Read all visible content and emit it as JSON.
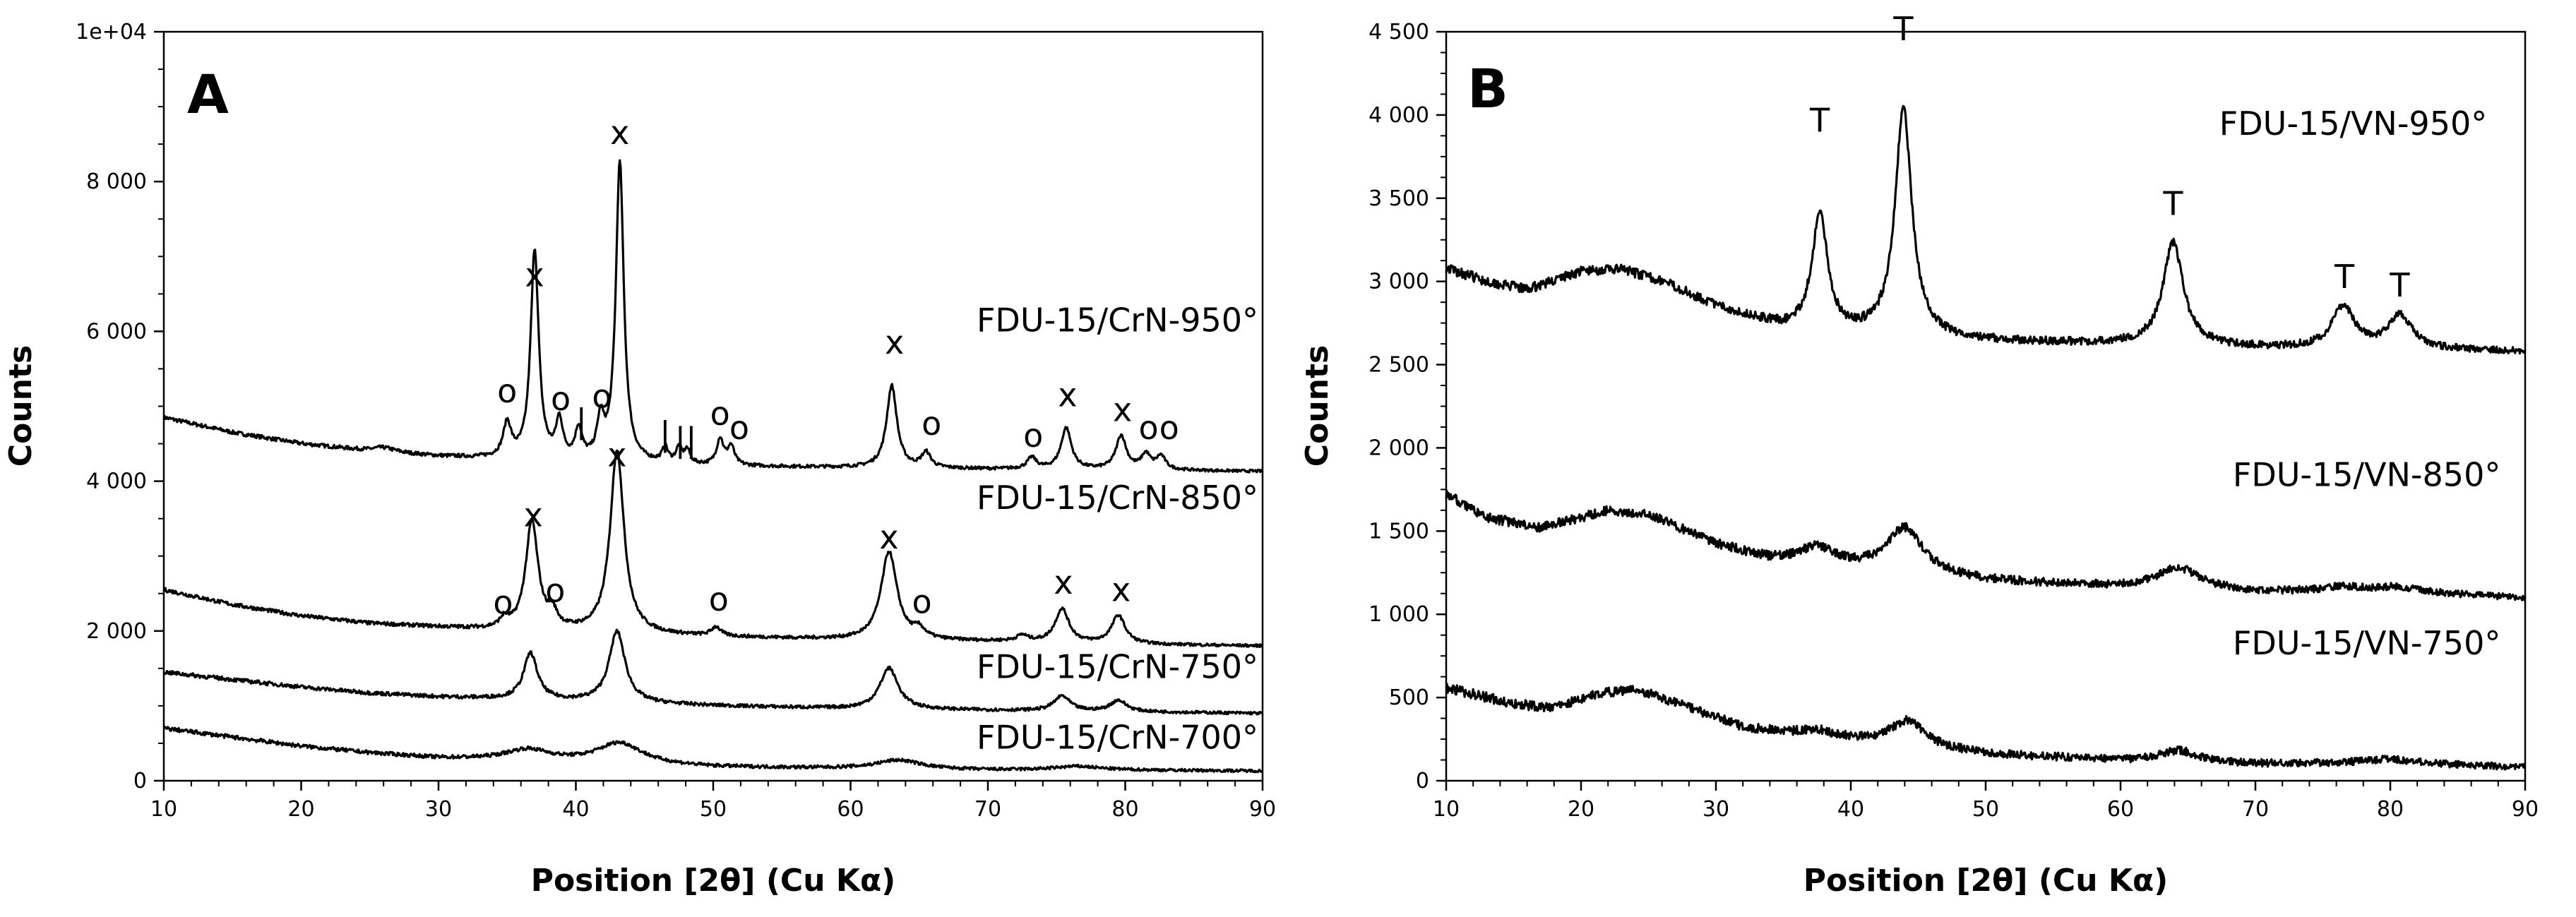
{
  "chart_data": [
    {
      "panel": "A",
      "type": "line",
      "title": "",
      "xlabel": "Position [2θ] (Cu Kα)",
      "ylabel": "Counts",
      "xlim": [
        10,
        90
      ],
      "ylim": [
        0,
        10000
      ],
      "x_ticks": [
        10,
        20,
        30,
        40,
        50,
        60,
        70,
        80,
        90
      ],
      "x_tick_labels": [
        "10",
        "20",
        "30",
        "40",
        "50",
        "60",
        "70",
        "80",
        "90"
      ],
      "y_ticks": [
        0,
        2000,
        4000,
        6000,
        8000,
        10000
      ],
      "y_tick_labels": [
        "0",
        "2 000",
        "4 000",
        "6 000",
        "8 000",
        "1e+04"
      ],
      "series": [
        {
          "name": "FDU-15/CrN-950°",
          "baseline": [
            [
              10,
              4850
            ],
            [
              15,
              4650
            ],
            [
              20,
              4500
            ],
            [
              25,
              4400
            ],
            [
              30,
              4330
            ],
            [
              40,
              4250
            ],
            [
              50,
              4200
            ],
            [
              60,
              4180
            ],
            [
              70,
              4160
            ],
            [
              80,
              4150
            ],
            [
              90,
              4130
            ]
          ],
          "peaks": [
            [
              26,
              60,
              1.0
            ],
            [
              35.0,
              450,
              0.35
            ],
            [
              37.0,
              2800,
              0.35
            ],
            [
              38.8,
              500,
              0.3
            ],
            [
              40.2,
              400,
              0.3
            ],
            [
              41.8,
              500,
              0.3
            ],
            [
              43.2,
              4000,
              0.35
            ],
            [
              46.5,
              200,
              0.25
            ],
            [
              47.5,
              200,
              0.25
            ],
            [
              48.1,
              180,
              0.25
            ],
            [
              50.5,
              350,
              0.3
            ],
            [
              51.3,
              250,
              0.3
            ],
            [
              63.0,
              1100,
              0.45
            ],
            [
              65.5,
              200,
              0.4
            ],
            [
              73.2,
              150,
              0.4
            ],
            [
              75.7,
              550,
              0.45
            ],
            [
              79.7,
              450,
              0.45
            ],
            [
              81.5,
              200,
              0.4
            ],
            [
              82.6,
              180,
              0.4
            ]
          ],
          "label_value_at_x": [
            [
              70,
              6150
            ]
          ]
        },
        {
          "name": "FDU-15/CrN-850°",
          "baseline": [
            [
              10,
              2550
            ],
            [
              15,
              2350
            ],
            [
              20,
              2200
            ],
            [
              25,
              2100
            ],
            [
              30,
              2050
            ],
            [
              35,
              2000
            ],
            [
              40,
              1980
            ],
            [
              50,
              1920
            ],
            [
              60,
              1880
            ],
            [
              70,
              1860
            ],
            [
              80,
              1820
            ],
            [
              90,
              1800
            ]
          ],
          "peaks": [
            [
              34.8,
              120,
              0.4
            ],
            [
              36.8,
              1450,
              0.55
            ],
            [
              38.3,
              200,
              0.4
            ],
            [
              43.0,
              2450,
              0.6
            ],
            [
              50.2,
              120,
              0.4
            ],
            [
              62.8,
              1180,
              0.7
            ],
            [
              65.0,
              120,
              0.5
            ],
            [
              72.5,
              80,
              0.5
            ],
            [
              75.4,
              450,
              0.6
            ],
            [
              79.5,
              380,
              0.6
            ]
          ]
        },
        {
          "name": "FDU-15/CrN-750°",
          "baseline": [
            [
              10,
              1450
            ],
            [
              15,
              1350
            ],
            [
              20,
              1250
            ],
            [
              25,
              1170
            ],
            [
              30,
              1120
            ],
            [
              40,
              1060
            ],
            [
              50,
              1000
            ],
            [
              60,
              960
            ],
            [
              70,
              940
            ],
            [
              80,
              920
            ],
            [
              90,
              900
            ]
          ],
          "peaks": [
            [
              36.7,
              620,
              0.6
            ],
            [
              43.0,
              950,
              0.7
            ],
            [
              62.8,
              550,
              0.8
            ],
            [
              75.4,
              200,
              0.7
            ],
            [
              79.5,
              150,
              0.7
            ]
          ]
        },
        {
          "name": "FDU-15/CrN-700°",
          "baseline": [
            [
              10,
              700
            ],
            [
              15,
              580
            ],
            [
              20,
              460
            ],
            [
              25,
              370
            ],
            [
              30,
              300
            ],
            [
              40,
              240
            ],
            [
              50,
              180
            ],
            [
              60,
              160
            ],
            [
              70,
              140
            ],
            [
              80,
              140
            ],
            [
              90,
              130
            ]
          ],
          "peaks": [
            [
              36.5,
              150,
              2.0
            ],
            [
              43.2,
              280,
              2.0
            ],
            [
              63.5,
              120,
              2.0
            ],
            [
              76.5,
              50,
              2.0
            ]
          ]
        }
      ],
      "annotations": [
        {
          "text": "x",
          "x": 37.0,
          "y": 6600
        },
        {
          "text": "x",
          "x": 43.2,
          "y": 8500
        },
        {
          "text": "x",
          "x": 63.2,
          "y": 5700
        },
        {
          "text": "x",
          "x": 75.8,
          "y": 5000
        },
        {
          "text": "x",
          "x": 79.8,
          "y": 4800
        },
        {
          "text": "o",
          "x": 35.0,
          "y": 5050
        },
        {
          "text": "o",
          "x": 38.9,
          "y": 4950
        },
        {
          "text": "o",
          "x": 41.9,
          "y": 4980
        },
        {
          "text": "|",
          "x": 40.4,
          "y": 4650
        },
        {
          "text": "|",
          "x": 46.5,
          "y": 4480
        },
        {
          "text": "||",
          "x": 48.0,
          "y": 4400
        },
        {
          "text": "o",
          "x": 50.5,
          "y": 4750
        },
        {
          "text": "o",
          "x": 51.9,
          "y": 4560
        },
        {
          "text": "o",
          "x": 65.9,
          "y": 4620
        },
        {
          "text": "o",
          "x": 73.3,
          "y": 4460
        },
        {
          "text": "o",
          "x": 81.7,
          "y": 4560
        },
        {
          "text": "o",
          "x": 83.2,
          "y": 4560
        },
        {
          "text": "x",
          "x": 43.0,
          "y": 4200
        },
        {
          "text": "x",
          "x": 36.9,
          "y": 3400
        },
        {
          "text": "x",
          "x": 62.8,
          "y": 3100
        },
        {
          "text": "x",
          "x": 75.5,
          "y": 2500
        },
        {
          "text": "x",
          "x": 79.7,
          "y": 2400
        },
        {
          "text": "o",
          "x": 34.7,
          "y": 2230
        },
        {
          "text": "o",
          "x": 38.5,
          "y": 2390
        },
        {
          "text": "o",
          "x": 50.4,
          "y": 2270
        },
        {
          "text": "o",
          "x": 65.2,
          "y": 2240
        }
      ],
      "series_labels": [
        {
          "text": "FDU-15/CrN-950°",
          "x_end": 90,
          "y": 6000
        },
        {
          "text": "FDU-15/CrN-850°",
          "x_end": 90,
          "y": 3630
        },
        {
          "text": "FDU-15/CrN-750°",
          "x_end": 90,
          "y": 1370
        },
        {
          "text": "FDU-15/CrN-700°",
          "x_end": 90,
          "y": 430
        }
      ]
    },
    {
      "panel": "B",
      "type": "line",
      "title": "",
      "xlabel": "Position [2θ] (Cu Kα)",
      "ylabel": "Counts",
      "xlim": [
        10,
        90
      ],
      "ylim": [
        0,
        4500
      ],
      "x_ticks": [
        10,
        20,
        30,
        40,
        50,
        60,
        70,
        80,
        90
      ],
      "x_tick_labels": [
        "10",
        "20",
        "30",
        "40",
        "50",
        "60",
        "70",
        "80",
        "90"
      ],
      "y_ticks": [
        0,
        500,
        1000,
        1500,
        2000,
        2500,
        3000,
        3500,
        4000,
        4500
      ],
      "y_tick_labels": [
        "0",
        "500",
        "1 000",
        "1 500",
        "2 000",
        "2 500",
        "3 000",
        "3 500",
        "4 000",
        "4 500"
      ],
      "series": [
        {
          "name": "FDU-15/VN-950°",
          "baseline": [
            [
              10,
              3080
            ],
            [
              13,
              3000
            ],
            [
              16,
              2950
            ],
            [
              20,
              3060
            ],
            [
              23,
              3070
            ],
            [
              26,
              3000
            ],
            [
              30,
              2850
            ],
            [
              35,
              2720
            ],
            [
              40,
              2680
            ],
            [
              45,
              2660
            ],
            [
              50,
              2640
            ],
            [
              60,
              2620
            ],
            [
              70,
              2600
            ],
            [
              80,
              2590
            ],
            [
              90,
              2580
            ]
          ],
          "peaks": [
            [
              37.7,
              700,
              0.7
            ],
            [
              43.9,
              1370,
              0.75
            ],
            [
              63.9,
              620,
              0.9
            ],
            [
              76.5,
              250,
              1.0
            ],
            [
              80.7,
              200,
              1.1
            ]
          ]
        },
        {
          "name": "FDU-15/VN-850°",
          "baseline": [
            [
              10,
              1720
            ],
            [
              13,
              1580
            ],
            [
              17,
              1520
            ],
            [
              22,
              1620
            ],
            [
              25,
              1600
            ],
            [
              30,
              1420
            ],
            [
              34,
              1330
            ],
            [
              40,
              1280
            ],
            [
              50,
              1200
            ],
            [
              60,
              1160
            ],
            [
              70,
              1130
            ],
            [
              80,
              1130
            ],
            [
              90,
              1100
            ]
          ],
          "peaks": [
            [
              37.5,
              100,
              1.5
            ],
            [
              44.0,
              270,
              1.6
            ],
            [
              64.3,
              130,
              2.0
            ],
            [
              76.5,
              30,
              2.0
            ],
            [
              80.5,
              30,
              2.0
            ]
          ]
        },
        {
          "name": "FDU-15/VN-750°",
          "baseline": [
            [
              10,
              560
            ],
            [
              15,
              460
            ],
            [
              18,
              440
            ],
            [
              21,
              520
            ],
            [
              24,
              550
            ],
            [
              28,
              440
            ],
            [
              32,
              320
            ],
            [
              38,
              250
            ],
            [
              42,
              230
            ],
            [
              50,
              160
            ],
            [
              60,
              120
            ],
            [
              70,
              100
            ],
            [
              80,
              110
            ],
            [
              90,
              80
            ]
          ],
          "peaks": [
            [
              37.5,
              50,
              1.5
            ],
            [
              44.2,
              150,
              1.5
            ],
            [
              64.3,
              70,
              1.8
            ],
            [
              80.0,
              20,
              2.0
            ]
          ]
        }
      ],
      "annotations": [
        {
          "text": "T",
          "x": 37.7,
          "y": 3900
        },
        {
          "text": "T",
          "x": 43.9,
          "y": 4450
        },
        {
          "text": "T",
          "x": 63.9,
          "y": 3400
        },
        {
          "text": "T",
          "x": 76.6,
          "y": 2960
        },
        {
          "text": "T",
          "x": 80.7,
          "y": 2910
        }
      ],
      "series_labels": [
        {
          "text": "FDU-15/VN-950°",
          "x_end": 87.5,
          "y": 3880
        },
        {
          "text": "FDU-15/VN-850°",
          "x_end": 88.5,
          "y": 1770
        },
        {
          "text": "FDU-15/VN-750°",
          "x_end": 88.5,
          "y": 760
        }
      ]
    }
  ]
}
